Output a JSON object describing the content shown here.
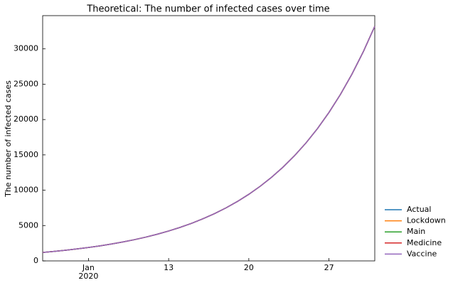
{
  "chart_data": {
    "type": "line",
    "title": "Theoretical: The number of infected cases over time",
    "y_label": "The number of infected cases",
    "x": [
      "2020-01-02",
      "2020-01-03",
      "2020-01-04",
      "2020-01-05",
      "2020-01-06",
      "2020-01-07",
      "2020-01-08",
      "2020-01-09",
      "2020-01-10",
      "2020-01-11",
      "2020-01-12",
      "2020-01-13",
      "2020-01-14",
      "2020-01-15",
      "2020-01-16",
      "2020-01-17",
      "2020-01-18",
      "2020-01-19",
      "2020-01-20",
      "2020-01-21",
      "2020-01-22",
      "2020-01-23",
      "2020-01-24",
      "2020-01-25",
      "2020-01-26",
      "2020-01-27",
      "2020-01-28",
      "2020-01-29",
      "2020-01-30",
      "2020-01-31"
    ],
    "series": [
      {
        "name": "Actual",
        "color": "#1f77b4",
        "values": [
          1200,
          1346,
          1509,
          1692,
          1897,
          2127,
          2385,
          2674,
          2999,
          3362,
          3770,
          4228,
          4740,
          5315,
          5960,
          6683,
          7494,
          8403,
          9422,
          10565,
          11847,
          13284,
          14895,
          16702,
          18728,
          21000,
          23547,
          26403,
          29606,
          33197
        ]
      },
      {
        "name": "Lockdown",
        "color": "#ff7f0e",
        "values": [
          1200,
          1346,
          1509,
          1692,
          1897,
          2127,
          2385,
          2674,
          2999,
          3362,
          3770,
          4228,
          4740,
          5315,
          5960,
          6683,
          7494,
          8403,
          9422,
          10565,
          11847,
          13284,
          14895,
          16702,
          18728,
          21000,
          23547,
          26403,
          29606,
          33197
        ]
      },
      {
        "name": "Main",
        "color": "#2ca02c",
        "values": [
          1200,
          1346,
          1509,
          1692,
          1897,
          2127,
          2385,
          2674,
          2999,
          3362,
          3770,
          4228,
          4740,
          5315,
          5960,
          6683,
          7494,
          8403,
          9422,
          10565,
          11847,
          13284,
          14895,
          16702,
          18728,
          21000,
          23547,
          26403,
          29606,
          33197
        ]
      },
      {
        "name": "Medicine",
        "color": "#d62728",
        "values": [
          1200,
          1346,
          1509,
          1692,
          1897,
          2127,
          2385,
          2674,
          2999,
          3362,
          3770,
          4228,
          4740,
          5315,
          5960,
          6683,
          7494,
          8403,
          9422,
          10565,
          11847,
          13284,
          14895,
          16702,
          18728,
          21000,
          23547,
          26403,
          29606,
          33197
        ]
      },
      {
        "name": "Vaccine",
        "color": "#9467bd",
        "values": [
          1200,
          1346,
          1509,
          1692,
          1897,
          2127,
          2385,
          2674,
          2999,
          3362,
          3770,
          4228,
          4740,
          5315,
          5960,
          6683,
          7494,
          8403,
          9422,
          10565,
          11847,
          13284,
          14895,
          16702,
          18728,
          21000,
          23547,
          26403,
          29606,
          33197
        ]
      }
    ],
    "xlim": [
      "2020-01-02",
      "2020-01-31"
    ],
    "xticks": [
      {
        "value": "2020-01-06",
        "label": "Jan\n2020"
      },
      {
        "value": "2020-01-13",
        "label": "13"
      },
      {
        "value": "2020-01-20",
        "label": "20"
      },
      {
        "value": "2020-01-27",
        "label": "27"
      }
    ],
    "ylim": [
      0,
      34700
    ],
    "yticks": [
      0,
      5000,
      10000,
      15000,
      20000,
      25000,
      30000
    ],
    "grid": false,
    "legend": "outside-lower-right"
  }
}
